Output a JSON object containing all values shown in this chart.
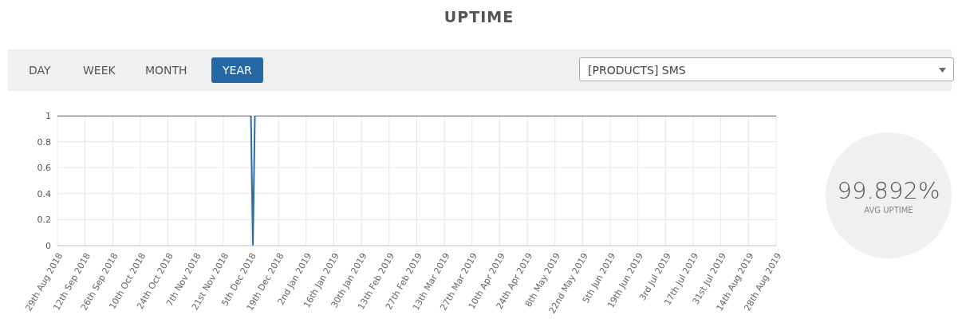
{
  "chart_data": [
    {
      "type": "line",
      "title": "UPTIME",
      "annotations": [
        "DAY",
        "WEEK",
        "MONTH",
        "YEAR",
        "[PRODUCTS] SMS"
      ],
      "x": [
        "2018-08-29",
        "2018-12-05",
        "2018-12-06",
        "2018-12-07",
        "2019-08-28"
      ],
      "values": [
        1,
        1,
        0,
        1,
        1
      ],
      "color": "#2e6da4",
      "xlim": [
        "2018-08-29",
        "2019-08-28"
      ],
      "xticks": [
        {
          "value": "2018-08-29",
          "label": "29th Aug 2018"
        },
        {
          "value": "2018-09-12",
          "label": "12th Sep 2018"
        },
        {
          "value": "2018-09-26",
          "label": "26th Sep 2018"
        },
        {
          "value": "2018-10-10",
          "label": "10th Oct 2018"
        },
        {
          "value": "2018-10-24",
          "label": "24th Oct 2018"
        },
        {
          "value": "2018-11-07",
          "label": "7th Nov 2018"
        },
        {
          "value": "2018-11-21",
          "label": "21st Nov 2018"
        },
        {
          "value": "2018-12-05",
          "label": "5th Dec 2018"
        },
        {
          "value": "2018-12-19",
          "label": "19th Dec 2018"
        },
        {
          "value": "2019-01-02",
          "label": "2nd Jan 2019"
        },
        {
          "value": "2019-01-16",
          "label": "16th Jan 2019"
        },
        {
          "value": "2019-01-30",
          "label": "30th Jan 2019"
        },
        {
          "value": "2019-02-13",
          "label": "13th Feb 2019"
        },
        {
          "value": "2019-02-27",
          "label": "27th Feb 2019"
        },
        {
          "value": "2019-03-13",
          "label": "13th Mar 2019"
        },
        {
          "value": "2019-03-27",
          "label": "27th Mar 2019"
        },
        {
          "value": "2019-04-10",
          "label": "10th Apr 2019"
        },
        {
          "value": "2019-04-24",
          "label": "24th Apr 2019"
        },
        {
          "value": "2019-05-08",
          "label": "8th May 2019"
        },
        {
          "value": "2019-05-22",
          "label": "22nd May 2019"
        },
        {
          "value": "2019-06-05",
          "label": "5th Jun 2019"
        },
        {
          "value": "2019-06-19",
          "label": "19th Jun 2019"
        },
        {
          "value": "2019-07-03",
          "label": "3rd Jul 2019"
        },
        {
          "value": "2019-07-17",
          "label": "17th Jul 2019"
        },
        {
          "value": "2019-07-31",
          "label": "31st Jul 2019"
        },
        {
          "value": "2019-08-14",
          "label": "14th Aug 2019"
        },
        {
          "value": "2019-08-28",
          "label": "28th Aug 2019"
        }
      ],
      "ylim": [
        0,
        1
      ],
      "yticks": [
        0,
        0.2,
        0.4,
        0.6,
        0.8,
        1
      ],
      "grid": true,
      "marker": "none",
      "line_style": "solid"
    },
    {
      "type": "other",
      "annotations": [
        "99.892%",
        "AVG UPTIME"
      ]
    }
  ]
}
